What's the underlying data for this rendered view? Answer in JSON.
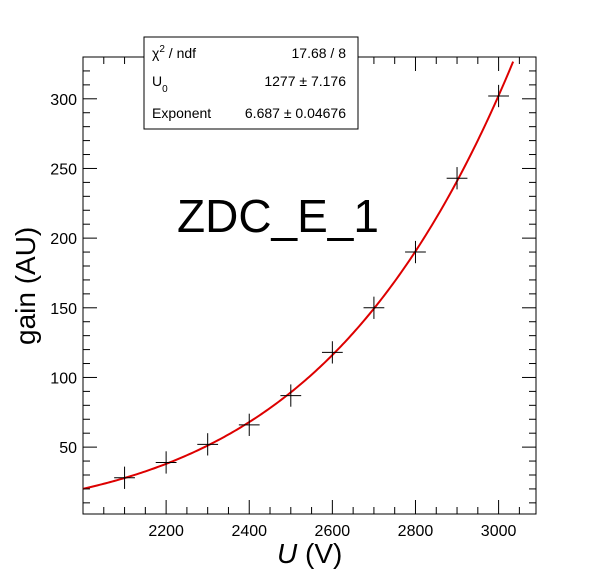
{
  "chart_data": {
    "type": "scatter",
    "annotation": "ZDC_E_1",
    "xlabel_italic": "U",
    "xlabel_rest": " (V)",
    "ylabel": "gain (AU)",
    "xlim": [
      2000,
      3090
    ],
    "ylim": [
      2,
      330
    ],
    "xticks": [
      2200,
      2400,
      2600,
      2800,
      3000
    ],
    "xtick_labels": [
      "2200",
      "2400",
      "2600",
      "2800",
      "3000"
    ],
    "yticks": [
      50,
      100,
      150,
      200,
      250,
      300
    ],
    "ytick_labels": [
      "50",
      "100",
      "150",
      "200",
      "250",
      "300"
    ],
    "grid": false,
    "points": [
      {
        "x": 2100,
        "y": 28,
        "xerr": 25,
        "yerr": 8
      },
      {
        "x": 2200,
        "y": 39,
        "xerr": 25,
        "yerr": 8
      },
      {
        "x": 2300,
        "y": 52,
        "xerr": 25,
        "yerr": 8
      },
      {
        "x": 2400,
        "y": 66,
        "xerr": 25,
        "yerr": 8
      },
      {
        "x": 2500,
        "y": 87,
        "xerr": 25,
        "yerr": 8
      },
      {
        "x": 2600,
        "y": 118,
        "xerr": 25,
        "yerr": 8
      },
      {
        "x": 2700,
        "y": 150,
        "xerr": 25,
        "yerr": 8
      },
      {
        "x": 2800,
        "y": 190,
        "xerr": 25,
        "yerr": 8
      },
      {
        "x": 2900,
        "y": 243,
        "xerr": 25,
        "yerr": 8
      },
      {
        "x": 3000,
        "y": 302,
        "xerr": 25,
        "yerr": 8
      }
    ],
    "fit": {
      "color": "#dd0000",
      "x_start": 2000,
      "x_end": 3090,
      "U0": 1277,
      "exponent": 6.687
    },
    "stats_box": {
      "chi2_label": "χ",
      "chi2_sup": "2",
      "chi2_rest": " / ndf",
      "chi2_value": "17.68 / 8",
      "u0_label": "U",
      "u0_sub": "0",
      "u0_value": "1277 ± 7.176",
      "exp_label": "Exponent",
      "exp_value": "6.687 ± 0.04676"
    }
  }
}
